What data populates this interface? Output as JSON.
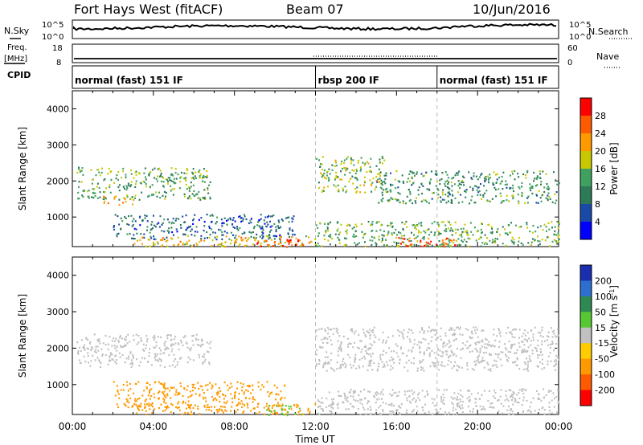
{
  "header": {
    "radar_title": "Fort Hays West (fitACF)",
    "beam": "Beam 07",
    "date": "10/Jun/2016"
  },
  "left_labels": {
    "nsky": "N.Sky",
    "freq": "Freq.",
    "freq_unit": "[MHz]",
    "cpid": "CPID",
    "nsky_ticks": [
      "10^5",
      "10^0"
    ],
    "freq_ticks": [
      "18",
      "8"
    ]
  },
  "right_labels": {
    "nsearch": "N.Search",
    "nave": "Nave",
    "nsearch_ticks": [
      "10^5",
      "10^0"
    ],
    "nave_ticks": [
      "60",
      "0"
    ]
  },
  "cpid_segments": [
    {
      "label": "normal (fast) 151 IF",
      "start_h": 0,
      "end_h": 12
    },
    {
      "label": "rbsp 200 IF",
      "start_h": 12,
      "end_h": 18
    },
    {
      "label": "normal (fast) 151 IF",
      "start_h": 18,
      "end_h": 24
    }
  ],
  "chart_data": [
    {
      "type": "heatmap",
      "name": "power",
      "ylabel": "Slant Range [km]",
      "xlabel": "",
      "xlim": [
        0,
        24
      ],
      "ylim": [
        180,
        4500
      ],
      "yticks": [
        "1000",
        "2000",
        "3000",
        "4000"
      ],
      "colorbar_label": "Power [dB]",
      "colorbar_ticks": [
        "4",
        "8",
        "12",
        "16",
        "20",
        "24",
        "28"
      ],
      "colorbar_colors": [
        "#0000ff",
        "#1a4aa8",
        "#2c7a58",
        "#3fa060",
        "#c8c800",
        "#ff9900",
        "#ff5a00",
        "#ff0000"
      ],
      "scatter_bands": [
        {
          "x0": 0.2,
          "x1": 6.8,
          "y0": 1500,
          "y1": 2400,
          "value": 14
        },
        {
          "x0": 1.5,
          "x1": 3.0,
          "y0": 1350,
          "y1": 1600,
          "value": 22
        },
        {
          "x0": 2.0,
          "x1": 11.0,
          "y0": 400,
          "y1": 1100,
          "value": 8
        },
        {
          "x0": 3.0,
          "x1": 12.0,
          "y0": 200,
          "y1": 500,
          "value": 20
        },
        {
          "x0": 9.0,
          "x1": 11.5,
          "y0": 180,
          "y1": 400,
          "value": 26
        },
        {
          "x0": 12.0,
          "x1": 15.5,
          "y0": 1700,
          "y1": 2700,
          "value": 16
        },
        {
          "x0": 15.0,
          "x1": 24.0,
          "y0": 1400,
          "y1": 2300,
          "value": 12
        },
        {
          "x0": 12.0,
          "x1": 24.0,
          "y0": 200,
          "y1": 900,
          "value": 14
        },
        {
          "x0": 16.0,
          "x1": 19.0,
          "y0": 180,
          "y1": 450,
          "value": 26
        }
      ]
    },
    {
      "type": "heatmap",
      "name": "velocity",
      "ylabel": "Slant Range [km]",
      "xlabel": "Time UT",
      "xlim": [
        0,
        24
      ],
      "ylim": [
        180,
        4500
      ],
      "yticks": [
        "1000",
        "2000",
        "3000",
        "4000"
      ],
      "xticks": [
        "00:00",
        "04:00",
        "08:00",
        "12:00",
        "16:00",
        "20:00",
        "00:00"
      ],
      "colorbar_label": "Velocity [m s-1]",
      "colorbar_ticks": [
        "200",
        "100",
        "50",
        "15",
        "-15",
        "-50",
        "-100",
        "-200"
      ],
      "colorbar_colors": [
        "#1a2fb0",
        "#2c6fd0",
        "#2e8a52",
        "#58c832",
        "#c0c0c0",
        "#ffcc00",
        "#ff9900",
        "#ff5a00",
        "#ff0000"
      ],
      "scatter_bands": [
        {
          "x0": 0.2,
          "x1": 6.8,
          "y0": 1500,
          "y1": 2400,
          "value": 0
        },
        {
          "x0": 2.0,
          "x1": 10.5,
          "y0": 400,
          "y1": 1100,
          "value": -70
        },
        {
          "x0": 3.0,
          "x1": 12.0,
          "y0": 200,
          "y1": 500,
          "value": -80
        },
        {
          "x0": 9.5,
          "x1": 11.3,
          "y0": 180,
          "y1": 450,
          "value": 40
        },
        {
          "x0": 12.0,
          "x1": 24.0,
          "y0": 1400,
          "y1": 2600,
          "value": 0
        },
        {
          "x0": 12.0,
          "x1": 24.0,
          "y0": 200,
          "y1": 900,
          "value": 0
        }
      ]
    }
  ]
}
